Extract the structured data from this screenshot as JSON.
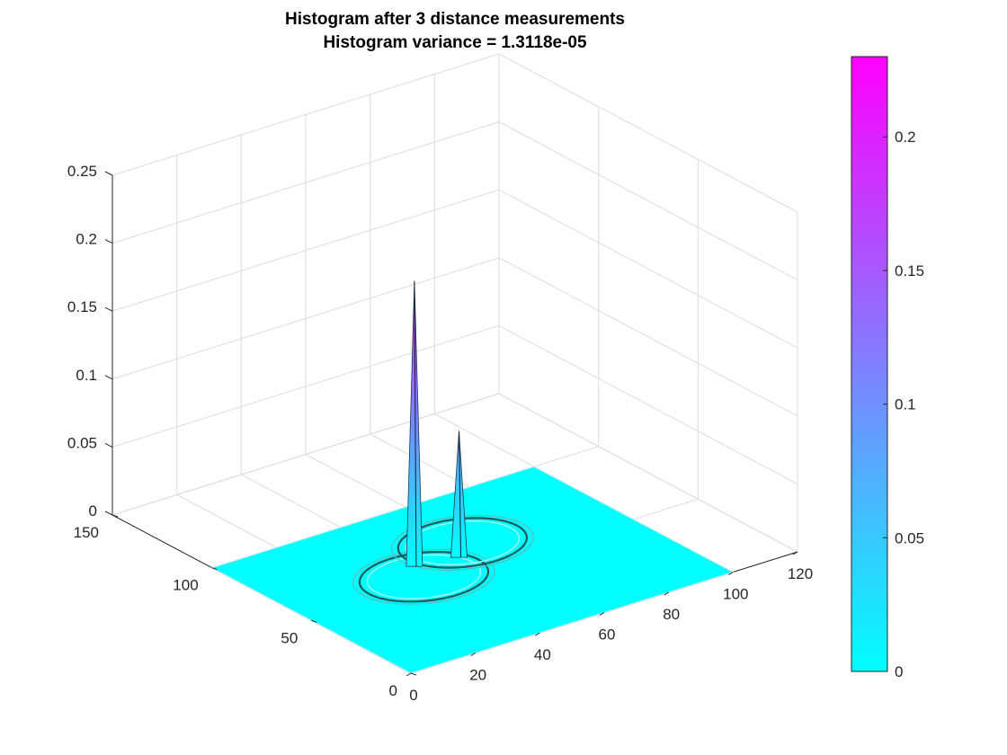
{
  "chart_data": {
    "type": "surface",
    "title": [
      "Histogram after 3  distance measurements",
      "Histogram variance = 1.3118e-05"
    ],
    "x_axis": {
      "range": [
        0,
        120
      ],
      "ticks": [
        "0",
        "20",
        "40",
        "60",
        "80",
        "100",
        "120"
      ]
    },
    "y_axis": {
      "range": [
        0,
        150
      ],
      "ticks": [
        "0",
        "50",
        "100",
        "150"
      ]
    },
    "z_axis": {
      "range": [
        0,
        0.25
      ],
      "ticks": [
        "0",
        "0.05",
        "0.1",
        "0.15",
        "0.2",
        "0.25"
      ]
    },
    "colorbar": {
      "range": [
        0,
        0.23
      ],
      "ticks": [
        "0",
        "0.05",
        "0.1",
        "0.15",
        "0.2"
      ],
      "colormap": "cool",
      "colors": [
        "#00ffff",
        "#ff00ff"
      ]
    },
    "grid": true,
    "surface": {
      "base_value": 0,
      "x_extent": [
        0,
        100
      ],
      "y_extent": [
        0,
        100
      ],
      "peaks": [
        {
          "x": 40,
          "y": 63,
          "z": 0.21
        },
        {
          "x": 52,
          "y": 60,
          "z": 0.093
        }
      ],
      "rings": [
        {
          "cx": 38,
          "cy": 55,
          "r": 17
        },
        {
          "cx": 58,
          "cy": 68,
          "r": 17
        }
      ]
    }
  }
}
